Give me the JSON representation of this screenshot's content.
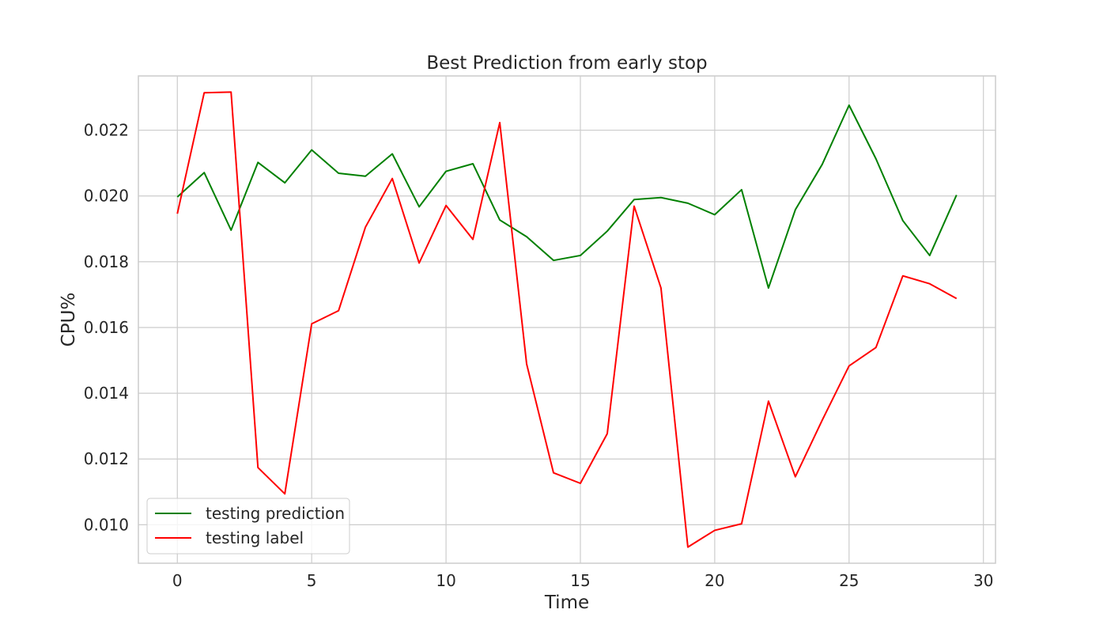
{
  "chart_data": {
    "type": "line",
    "title": "Best Prediction from early stop",
    "xlabel": "Time",
    "ylabel": "CPU%",
    "xlim": [
      -1.45,
      30.45
    ],
    "ylim": [
      0.00883,
      0.02365
    ],
    "x_ticks": [
      0,
      5,
      10,
      15,
      20,
      25,
      30
    ],
    "y_ticks": [
      0.01,
      0.012,
      0.014,
      0.016,
      0.018,
      0.02,
      0.022
    ],
    "x_tick_labels": [
      "0",
      "5",
      "10",
      "15",
      "20",
      "25",
      "30"
    ],
    "y_tick_labels": [
      "0.010",
      "0.012",
      "0.014",
      "0.016",
      "0.018",
      "0.020",
      "0.022"
    ],
    "grid": true,
    "legend_position": "lower-left",
    "x": [
      0,
      1,
      2,
      3,
      4,
      5,
      6,
      7,
      8,
      9,
      10,
      11,
      12,
      13,
      14,
      15,
      16,
      17,
      18,
      19,
      20,
      21,
      22,
      23,
      24,
      25,
      26,
      27,
      28,
      29
    ],
    "series": [
      {
        "name": "testing prediction",
        "color": "#008000",
        "values": [
          0.01997,
          0.02071,
          0.01896,
          0.02102,
          0.0204,
          0.0214,
          0.02069,
          0.0206,
          0.02128,
          0.01967,
          0.02075,
          0.02098,
          0.01927,
          0.01876,
          0.01804,
          0.01819,
          0.01893,
          0.01989,
          0.01995,
          0.01978,
          0.01943,
          0.02019,
          0.0172,
          0.01958,
          0.02096,
          0.02276,
          0.02113,
          0.01925,
          0.01819,
          0.02003
        ]
      },
      {
        "name": "testing label",
        "color": "#ff0000",
        "values": [
          0.01946,
          0.02314,
          0.02316,
          0.01174,
          0.01094,
          0.01611,
          0.01651,
          0.01905,
          0.02053,
          0.01796,
          0.01971,
          0.01868,
          0.02223,
          0.01489,
          0.01158,
          0.01126,
          0.01277,
          0.01969,
          0.0172,
          0.00932,
          0.00983,
          0.01003,
          0.01376,
          0.01146,
          0.01318,
          0.01483,
          0.01539,
          0.01757,
          0.01733,
          0.01688
        ]
      }
    ]
  }
}
